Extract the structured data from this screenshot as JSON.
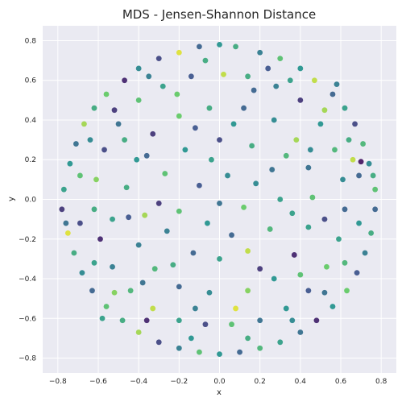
{
  "chart_data": {
    "type": "scatter",
    "title": "MDS - Jensen-Shannon Distance",
    "xlabel": "x",
    "ylabel": "y",
    "xlim": [
      -0.875,
      0.875
    ],
    "ylim": [
      -0.875,
      0.875
    ],
    "xticks": [
      -0.8,
      -0.6,
      -0.4,
      -0.2,
      0.0,
      0.2,
      0.4,
      0.6,
      0.8
    ],
    "yticks": [
      -0.8,
      -0.6,
      -0.4,
      -0.2,
      0.0,
      0.2,
      0.4,
      0.6,
      0.8
    ],
    "xtick_labels": [
      "−0.8",
      "−0.6",
      "−0.4",
      "−0.2",
      "0.0",
      "0.2",
      "0.4",
      "0.6",
      "0.8"
    ],
    "ytick_labels": [
      "−0.8",
      "−0.6",
      "−0.4",
      "−0.2",
      "0.0",
      "0.2",
      "0.4",
      "0.6",
      "0.8"
    ],
    "grid": true,
    "background": "#eaeaf2",
    "colormap": "viridis",
    "colors": [
      "#440154",
      "#3b528b",
      "#21918c",
      "#5ec962",
      "#fde725"
    ],
    "points": [
      {
        "x": 0.0,
        "y": 0.78,
        "c": 0.5
      },
      {
        "x": 0.08,
        "y": 0.77,
        "c": 0.6
      },
      {
        "x": -0.1,
        "y": 0.77,
        "c": 0.3
      },
      {
        "x": -0.2,
        "y": 0.74,
        "c": 0.95
      },
      {
        "x": 0.2,
        "y": 0.74,
        "c": 0.4
      },
      {
        "x": 0.3,
        "y": 0.71,
        "c": 0.7
      },
      {
        "x": -0.3,
        "y": 0.71,
        "c": 0.2
      },
      {
        "x": 0.4,
        "y": 0.66,
        "c": 0.5
      },
      {
        "x": -0.4,
        "y": 0.66,
        "c": 0.45
      },
      {
        "x": 0.47,
        "y": 0.6,
        "c": 0.9
      },
      {
        "x": -0.47,
        "y": 0.6,
        "c": 0.1
      },
      {
        "x": 0.56,
        "y": 0.53,
        "c": 0.3
      },
      {
        "x": -0.56,
        "y": 0.53,
        "c": 0.75
      },
      {
        "x": 0.62,
        "y": 0.46,
        "c": 0.55
      },
      {
        "x": -0.62,
        "y": 0.46,
        "c": 0.6
      },
      {
        "x": 0.67,
        "y": 0.38,
        "c": 0.2
      },
      {
        "x": -0.67,
        "y": 0.38,
        "c": 0.85
      },
      {
        "x": 0.71,
        "y": 0.28,
        "c": 0.65
      },
      {
        "x": -0.71,
        "y": 0.28,
        "c": 0.35
      },
      {
        "x": 0.74,
        "y": 0.18,
        "c": 0.45
      },
      {
        "x": -0.74,
        "y": 0.18,
        "c": 0.5
      },
      {
        "x": 0.77,
        "y": 0.05,
        "c": 0.7
      },
      {
        "x": -0.77,
        "y": 0.05,
        "c": 0.55
      },
      {
        "x": 0.77,
        "y": -0.05,
        "c": 0.3
      },
      {
        "x": -0.78,
        "y": -0.05,
        "c": 0.15
      },
      {
        "x": 0.75,
        "y": -0.17,
        "c": 0.6
      },
      {
        "x": -0.75,
        "y": -0.17,
        "c": 0.95
      },
      {
        "x": 0.72,
        "y": -0.27,
        "c": 0.4
      },
      {
        "x": -0.72,
        "y": -0.27,
        "c": 0.6
      },
      {
        "x": 0.68,
        "y": -0.37,
        "c": 0.25
      },
      {
        "x": -0.68,
        "y": -0.37,
        "c": 0.45
      },
      {
        "x": 0.63,
        "y": -0.46,
        "c": 0.75
      },
      {
        "x": -0.63,
        "y": -0.46,
        "c": 0.3
      },
      {
        "x": 0.56,
        "y": -0.54,
        "c": 0.5
      },
      {
        "x": -0.56,
        "y": -0.54,
        "c": 0.7
      },
      {
        "x": 0.48,
        "y": -0.61,
        "c": 0.1
      },
      {
        "x": -0.48,
        "y": -0.61,
        "c": 0.6
      },
      {
        "x": 0.4,
        "y": -0.67,
        "c": 0.35
      },
      {
        "x": -0.4,
        "y": -0.67,
        "c": 0.85
      },
      {
        "x": 0.3,
        "y": -0.72,
        "c": 0.55
      },
      {
        "x": -0.3,
        "y": -0.72,
        "c": 0.2
      },
      {
        "x": 0.2,
        "y": -0.75,
        "c": 0.65
      },
      {
        "x": -0.2,
        "y": -0.75,
        "c": 0.4
      },
      {
        "x": 0.1,
        "y": -0.77,
        "c": 0.3
      },
      {
        "x": -0.1,
        "y": -0.77,
        "c": 0.7
      },
      {
        "x": 0.0,
        "y": -0.78,
        "c": 0.5
      },
      {
        "x": -0.14,
        "y": 0.62,
        "c": 0.25
      },
      {
        "x": 0.14,
        "y": 0.62,
        "c": 0.6
      },
      {
        "x": 0.02,
        "y": 0.63,
        "c": 0.9
      },
      {
        "x": 0.28,
        "y": 0.57,
        "c": 0.4
      },
      {
        "x": -0.28,
        "y": 0.57,
        "c": 0.55
      },
      {
        "x": 0.4,
        "y": 0.5,
        "c": 0.15
      },
      {
        "x": -0.4,
        "y": 0.5,
        "c": 0.7
      },
      {
        "x": 0.5,
        "y": 0.38,
        "c": 0.5
      },
      {
        "x": -0.5,
        "y": 0.38,
        "c": 0.35
      },
      {
        "x": 0.57,
        "y": 0.25,
        "c": 0.65
      },
      {
        "x": -0.57,
        "y": 0.25,
        "c": 0.2
      },
      {
        "x": 0.61,
        "y": 0.1,
        "c": 0.45
      },
      {
        "x": -0.61,
        "y": 0.1,
        "c": 0.8
      },
      {
        "x": 0.62,
        "y": -0.05,
        "c": 0.3
      },
      {
        "x": -0.62,
        "y": -0.05,
        "c": 0.6
      },
      {
        "x": 0.59,
        "y": -0.2,
        "c": 0.55
      },
      {
        "x": -0.59,
        "y": -0.2,
        "c": 0.1
      },
      {
        "x": 0.53,
        "y": -0.34,
        "c": 0.75
      },
      {
        "x": -0.53,
        "y": -0.34,
        "c": 0.4
      },
      {
        "x": 0.44,
        "y": -0.46,
        "c": 0.25
      },
      {
        "x": -0.44,
        "y": -0.46,
        "c": 0.65
      },
      {
        "x": 0.33,
        "y": -0.55,
        "c": 0.5
      },
      {
        "x": -0.33,
        "y": -0.55,
        "c": 0.9
      },
      {
        "x": 0.2,
        "y": -0.61,
        "c": 0.35
      },
      {
        "x": -0.2,
        "y": -0.61,
        "c": 0.55
      },
      {
        "x": 0.06,
        "y": -0.63,
        "c": 0.7
      },
      {
        "x": -0.07,
        "y": -0.63,
        "c": 0.2
      },
      {
        "x": -0.05,
        "y": 0.46,
        "c": 0.6
      },
      {
        "x": 0.12,
        "y": 0.46,
        "c": 0.3
      },
      {
        "x": -0.2,
        "y": 0.42,
        "c": 0.75
      },
      {
        "x": 0.27,
        "y": 0.4,
        "c": 0.45
      },
      {
        "x": -0.33,
        "y": 0.33,
        "c": 0.15
      },
      {
        "x": 0.38,
        "y": 0.3,
        "c": 0.85
      },
      {
        "x": -0.41,
        "y": 0.2,
        "c": 0.5
      },
      {
        "x": 0.44,
        "y": 0.16,
        "c": 0.35
      },
      {
        "x": -0.46,
        "y": 0.06,
        "c": 0.6
      },
      {
        "x": 0.46,
        "y": 0.01,
        "c": 0.7
      },
      {
        "x": -0.45,
        "y": -0.09,
        "c": 0.25
      },
      {
        "x": 0.44,
        "y": -0.14,
        "c": 0.55
      },
      {
        "x": -0.4,
        "y": -0.23,
        "c": 0.4
      },
      {
        "x": 0.37,
        "y": -0.28,
        "c": 0.1
      },
      {
        "x": -0.32,
        "y": -0.35,
        "c": 0.65
      },
      {
        "x": 0.27,
        "y": -0.4,
        "c": 0.5
      },
      {
        "x": -0.2,
        "y": -0.44,
        "c": 0.3
      },
      {
        "x": 0.14,
        "y": -0.46,
        "c": 0.8
      },
      {
        "x": -0.05,
        "y": -0.47,
        "c": 0.45
      },
      {
        "x": 0.0,
        "y": 0.3,
        "c": 0.2
      },
      {
        "x": 0.16,
        "y": 0.27,
        "c": 0.6
      },
      {
        "x": -0.17,
        "y": 0.25,
        "c": 0.5
      },
      {
        "x": 0.26,
        "y": 0.15,
        "c": 0.35
      },
      {
        "x": -0.27,
        "y": 0.13,
        "c": 0.7
      },
      {
        "x": 0.3,
        "y": 0.0,
        "c": 0.55
      },
      {
        "x": -0.3,
        "y": -0.02,
        "c": 0.15
      },
      {
        "x": 0.25,
        "y": -0.15,
        "c": 0.65
      },
      {
        "x": -0.26,
        "y": -0.16,
        "c": 0.4
      },
      {
        "x": 0.14,
        "y": -0.26,
        "c": 0.9
      },
      {
        "x": -0.13,
        "y": -0.27,
        "c": 0.3
      },
      {
        "x": 0.0,
        "y": -0.3,
        "c": 0.55
      },
      {
        "x": 0.04,
        "y": 0.12,
        "c": 0.45
      },
      {
        "x": -0.1,
        "y": 0.07,
        "c": 0.25
      },
      {
        "x": 0.12,
        "y": -0.04,
        "c": 0.75
      },
      {
        "x": -0.06,
        "y": -0.12,
        "c": 0.5
      },
      {
        "x": 0.0,
        "y": -0.02,
        "c": 0.35
      },
      {
        "x": -0.07,
        "y": 0.7,
        "c": 0.6
      },
      {
        "x": 0.24,
        "y": 0.66,
        "c": 0.25
      },
      {
        "x": 0.35,
        "y": 0.6,
        "c": 0.55
      },
      {
        "x": -0.35,
        "y": 0.62,
        "c": 0.4
      },
      {
        "x": 0.52,
        "y": 0.45,
        "c": 0.85
      },
      {
        "x": -0.52,
        "y": 0.45,
        "c": 0.15
      },
      {
        "x": 0.64,
        "y": 0.3,
        "c": 0.6
      },
      {
        "x": -0.64,
        "y": 0.3,
        "c": 0.45
      },
      {
        "x": 0.69,
        "y": 0.12,
        "c": 0.3
      },
      {
        "x": -0.69,
        "y": 0.12,
        "c": 0.7
      },
      {
        "x": 0.69,
        "y": -0.12,
        "c": 0.5
      },
      {
        "x": -0.69,
        "y": -0.12,
        "c": 0.2
      },
      {
        "x": 0.62,
        "y": -0.32,
        "c": 0.65
      },
      {
        "x": -0.62,
        "y": -0.32,
        "c": 0.55
      },
      {
        "x": 0.52,
        "y": -0.47,
        "c": 0.35
      },
      {
        "x": -0.52,
        "y": -0.47,
        "c": 0.8
      },
      {
        "x": 0.36,
        "y": -0.61,
        "c": 0.45
      },
      {
        "x": -0.36,
        "y": -0.61,
        "c": 0.1
      },
      {
        "x": 0.14,
        "y": -0.7,
        "c": 0.6
      },
      {
        "x": -0.14,
        "y": -0.7,
        "c": 0.5
      },
      {
        "x": 0.17,
        "y": 0.55,
        "c": 0.3
      },
      {
        "x": -0.21,
        "y": 0.53,
        "c": 0.75
      },
      {
        "x": 0.45,
        "y": 0.25,
        "c": 0.45
      },
      {
        "x": -0.47,
        "y": 0.3,
        "c": 0.6
      },
      {
        "x": 0.52,
        "y": -0.1,
        "c": 0.2
      },
      {
        "x": -0.53,
        "y": -0.1,
        "c": 0.55
      },
      {
        "x": 0.4,
        "y": -0.38,
        "c": 0.7
      },
      {
        "x": -0.38,
        "y": -0.42,
        "c": 0.35
      },
      {
        "x": 0.08,
        "y": -0.55,
        "c": 0.95
      },
      {
        "x": -0.12,
        "y": -0.55,
        "c": 0.4
      },
      {
        "x": 0.07,
        "y": 0.38,
        "c": 0.5
      },
      {
        "x": -0.12,
        "y": 0.36,
        "c": 0.25
      },
      {
        "x": 0.33,
        "y": 0.22,
        "c": 0.65
      },
      {
        "x": -0.36,
        "y": 0.22,
        "c": 0.3
      },
      {
        "x": 0.36,
        "y": -0.07,
        "c": 0.55
      },
      {
        "x": -0.37,
        "y": -0.08,
        "c": 0.85
      },
      {
        "x": 0.2,
        "y": -0.35,
        "c": 0.15
      },
      {
        "x": -0.23,
        "y": -0.33,
        "c": 0.6
      },
      {
        "x": 0.18,
        "y": 0.08,
        "c": 0.45
      },
      {
        "x": -0.2,
        "y": -0.06,
        "c": 0.7
      },
      {
        "x": 0.06,
        "y": -0.18,
        "c": 0.3
      },
      {
        "x": -0.04,
        "y": 0.2,
        "c": 0.55
      },
      {
        "x": 0.66,
        "y": 0.2,
        "c": 0.9
      },
      {
        "x": 0.7,
        "y": 0.19,
        "c": 0.05
      },
      {
        "x": 0.76,
        "y": 0.12,
        "c": 0.6
      },
      {
        "x": -0.76,
        "y": -0.12,
        "c": 0.35
      },
      {
        "x": 0.58,
        "y": 0.58,
        "c": 0.4
      },
      {
        "x": -0.58,
        "y": -0.6,
        "c": 0.55
      }
    ]
  }
}
